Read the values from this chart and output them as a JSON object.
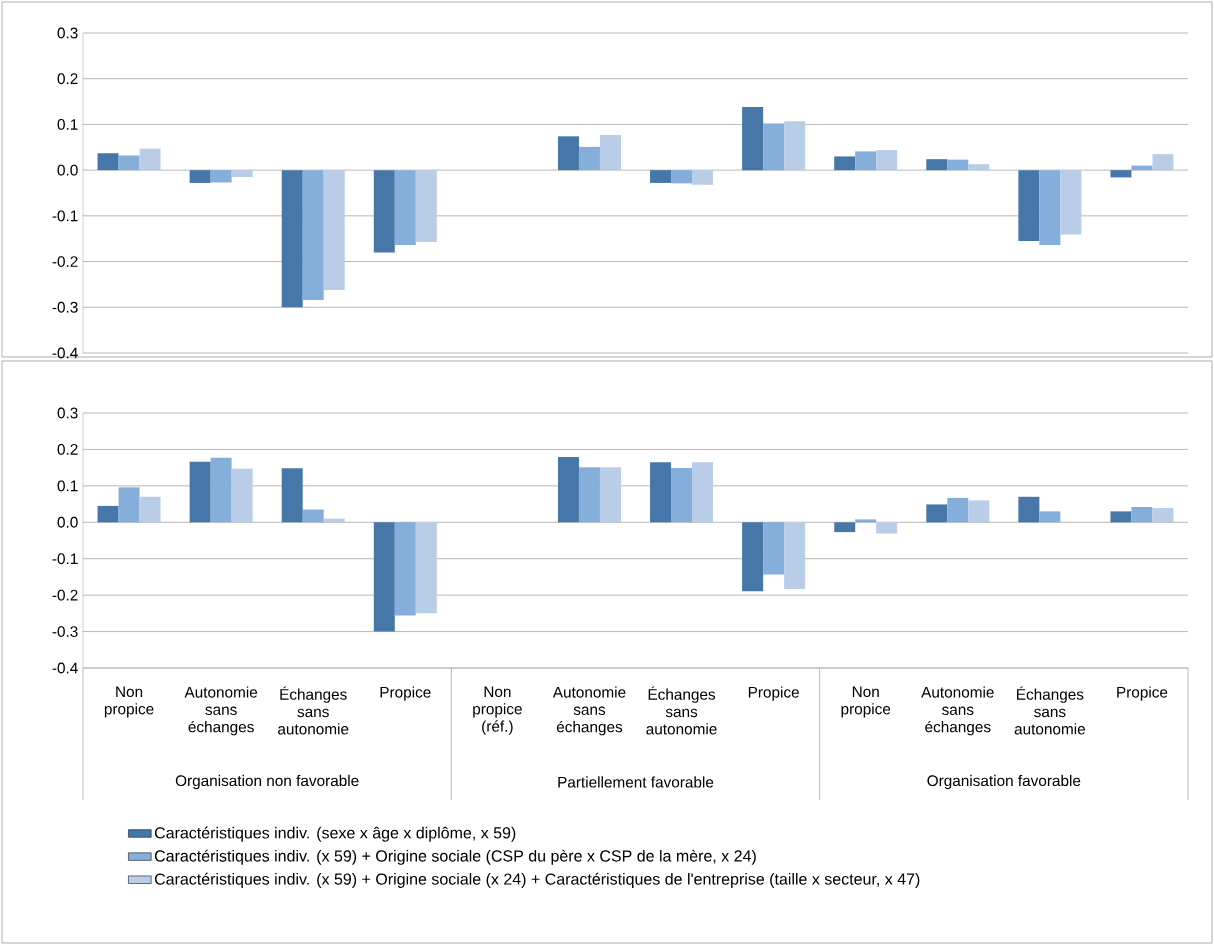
{
  "chart_data": [
    {
      "type": "bar",
      "categories": [
        null,
        null,
        null,
        null,
        null,
        null,
        null,
        null,
        null,
        null,
        null,
        null
      ],
      "series": [
        {
          "color": "#4677a8",
          "values": [
            0.037,
            -0.028,
            -0.3,
            -0.18,
            null,
            0.074,
            -0.028,
            0.138,
            0.03,
            0.024,
            -0.155,
            -0.016
          ]
        },
        {
          "color": "#86aedb",
          "values": [
            0.032,
            -0.027,
            -0.284,
            -0.164,
            null,
            0.051,
            -0.029,
            0.102,
            0.041,
            0.023,
            -0.164,
            0.01
          ]
        },
        {
          "color": "#b9cde8",
          "values": [
            0.047,
            -0.015,
            -0.262,
            -0.157,
            null,
            0.077,
            -0.032,
            0.107,
            0.044,
            0.013,
            -0.141,
            0.035
          ]
        }
      ],
      "ylim": [
        -0.4,
        0.3
      ],
      "yticks": [
        {
          "value": -0.4,
          "label": "-0.4"
        },
        {
          "value": -0.3,
          "label": "-0.3"
        },
        {
          "value": -0.2,
          "label": "-0.2"
        },
        {
          "value": -0.1,
          "label": "-0.1"
        },
        {
          "value": 0,
          "label": "0.0"
        },
        {
          "value": 0.1,
          "label": "0.1"
        },
        {
          "value": 0.2,
          "label": "0.2"
        },
        {
          "value": 0.3,
          "label": "0.3"
        }
      ],
      "grid": "y",
      "tick_labels": "y"
    },
    {
      "type": "bar",
      "categories": [
        "Non propice",
        "Autonomie sans échanges",
        "Échanges sans autonomie",
        "Propice",
        "Non propice (réf.)",
        "Autonomie sans échanges",
        "Échanges sans autonomie",
        "Propice",
        "Non propice",
        "Autonomie sans échanges",
        "Échanges sans autonomie",
        "Propice"
      ],
      "series": [
        {
          "name": "Caractéristiques indiv. (sexe x âge x diplôme, x 59)",
          "color": "#4677a8",
          "values": [
            0.045,
            0.166,
            0.148,
            -0.3,
            null,
            0.179,
            0.165,
            -0.189,
            -0.027,
            0.049,
            0.07,
            0.03
          ]
        },
        {
          "name": "Caractéristiques indiv. (x 59) + Origine sociale (CSP du père x CSP de la mère, x 24)",
          "color": "#86aedb",
          "values": [
            0.096,
            0.177,
            0.035,
            -0.256,
            null,
            0.151,
            0.149,
            -0.143,
            0.008,
            0.067,
            0.03,
            0.042
          ]
        },
        {
          "name": "Caractéristiques indiv. (x 59) + Origine sociale (x 24) + Caractéristiques de l'entreprise (taille x secteur, x 47)",
          "color": "#b9cde8",
          "values": [
            0.07,
            0.147,
            0.01,
            -0.25,
            null,
            0.151,
            0.165,
            -0.183,
            -0.031,
            0.06,
            null,
            0.039
          ]
        }
      ],
      "ylim": [
        -0.4,
        0.3
      ],
      "yticks": [
        {
          "value": -0.4,
          "label": "-0.4"
        },
        {
          "value": -0.3,
          "label": "-0.3"
        },
        {
          "value": -0.2,
          "label": "-0.2"
        },
        {
          "value": -0.1,
          "label": "-0.1"
        },
        {
          "value": 0,
          "label": "0.0"
        },
        {
          "value": 0.1,
          "label": "0.1"
        },
        {
          "value": 0.2,
          "label": "0.2"
        },
        {
          "value": 0.3,
          "label": "0.3"
        }
      ],
      "grid": "y",
      "legend": "bottom",
      "annotations": [
        "Organisation non favorable",
        "Partiellement favorable",
        "Organisation favorable"
      ]
    }
  ]
}
